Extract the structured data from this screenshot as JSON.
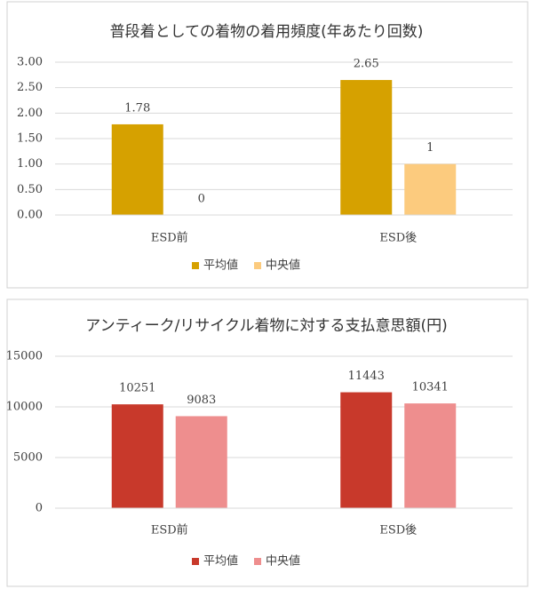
{
  "chart_data": [
    {
      "type": "bar",
      "title": "普段着としての着物の着用頻度(年あたり回数)",
      "categories": [
        "ESD前",
        "ESD後"
      ],
      "series": [
        {
          "name": "平均値",
          "color": "#d6a100",
          "values": [
            1.78,
            2.65
          ]
        },
        {
          "name": "中央値",
          "color": "#fccb7e",
          "values": [
            0,
            1
          ]
        }
      ],
      "ylim": [
        0,
        3
      ],
      "yticks": [
        {
          "value": 0,
          "label": "0.00"
        },
        {
          "value": 0.5,
          "label": "0.50"
        },
        {
          "value": 1,
          "label": "1.00"
        },
        {
          "value": 1.5,
          "label": "1.50"
        },
        {
          "value": 2,
          "label": "2.00"
        },
        {
          "value": 2.5,
          "label": "2.50"
        },
        {
          "value": 3,
          "label": "3.00"
        }
      ],
      "grid": true,
      "legend": "bottom"
    },
    {
      "type": "bar",
      "title": "アンティーク/リサイクル着物に対する支払意思額(円)",
      "categories": [
        "ESD前",
        "ESD後"
      ],
      "series": [
        {
          "name": "平均値",
          "color": "#c8392b",
          "values": [
            10251,
            11443
          ]
        },
        {
          "name": "中央値",
          "color": "#ee8e8e",
          "values": [
            9083,
            10341
          ]
        }
      ],
      "ylim": [
        0,
        15000
      ],
      "yticks": [
        0,
        5000,
        10000,
        15000
      ],
      "grid": true,
      "legend": "bottom"
    }
  ]
}
